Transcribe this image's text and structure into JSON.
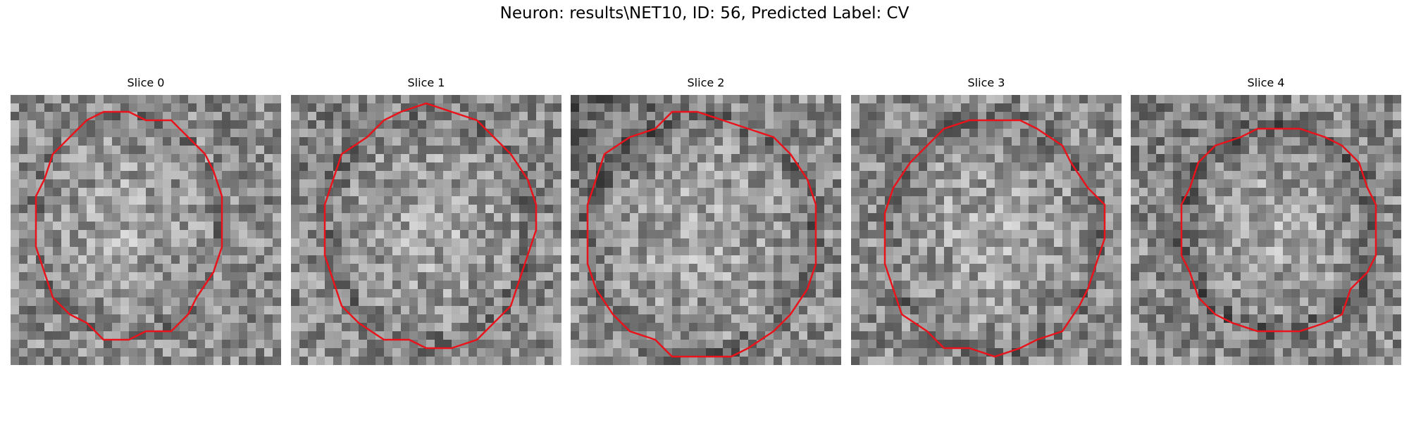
{
  "figure": {
    "title": "Neuron: results\\NET10, ID: 56, Predicted Label: CV"
  },
  "contour_color": "#e8131b",
  "panels": [
    {
      "title": "Slice 0",
      "seed": 11,
      "ring": 0.35,
      "darkCorner": 0.0
    },
    {
      "title": "Slice 1",
      "seed": 23,
      "ring": 0.45,
      "darkCorner": 0.2
    },
    {
      "title": "Slice 2",
      "seed": 37,
      "ring": 0.55,
      "darkCorner": 0.6
    },
    {
      "title": "Slice 3",
      "seed": 41,
      "ring": 0.5,
      "darkCorner": 0.1
    },
    {
      "title": "Slice 4",
      "seed": 59,
      "ring": 0.7,
      "darkCorner": 0.3
    }
  ]
}
